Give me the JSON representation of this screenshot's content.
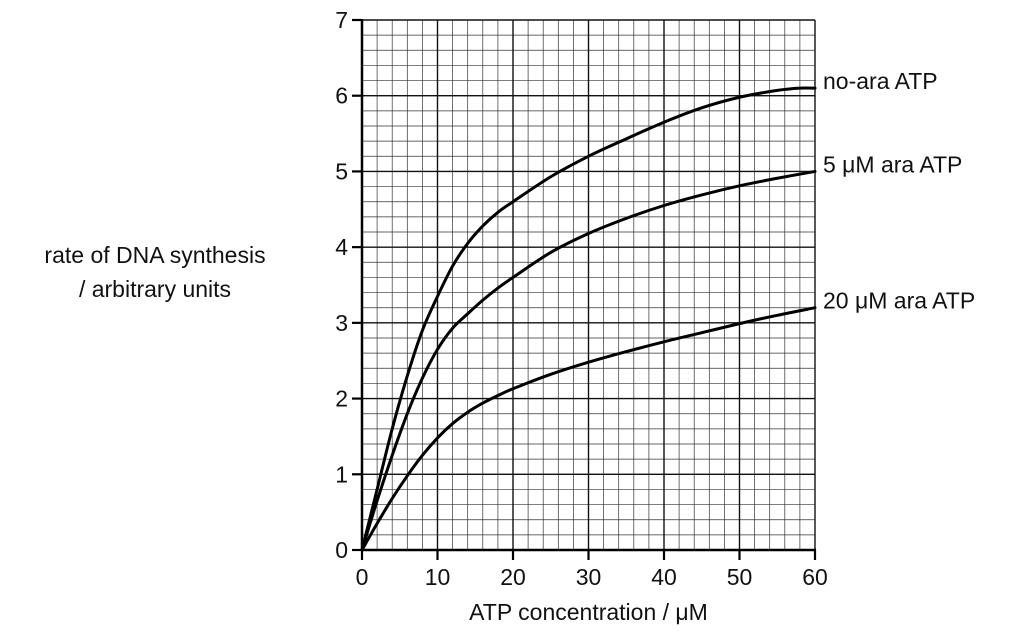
{
  "chart_data": {
    "type": "line",
    "title": "",
    "xlabel": "ATP concentration / μM",
    "ylabel_lines": [
      "rate of DNA synthesis",
      "/ arbitrary units"
    ],
    "xlim": [
      0,
      60
    ],
    "ylim": [
      0,
      7
    ],
    "x_ticks": [
      0,
      10,
      20,
      30,
      40,
      50,
      60
    ],
    "y_ticks": [
      0,
      1,
      2,
      3,
      4,
      5,
      6,
      7
    ],
    "grid": true,
    "minor_grid_step_x": 2,
    "minor_grid_step_y": 0.2,
    "legend": "labels at end of each line",
    "series": [
      {
        "name": "no-ara ATP",
        "x": [
          0,
          2,
          4,
          6,
          8,
          10,
          12,
          14,
          16,
          18,
          20,
          25,
          30,
          35,
          40,
          45,
          50,
          55,
          58,
          60
        ],
        "y": [
          0,
          0.8,
          1.6,
          2.3,
          2.9,
          3.35,
          3.75,
          4.05,
          4.28,
          4.46,
          4.6,
          4.93,
          5.2,
          5.43,
          5.65,
          5.84,
          5.98,
          6.07,
          6.1,
          6.1
        ]
      },
      {
        "name": "5 μM ara ATP",
        "x": [
          0,
          2,
          4,
          6,
          8,
          10,
          12,
          14,
          16,
          18,
          20,
          25,
          30,
          35,
          40,
          45,
          50,
          55,
          60
        ],
        "y": [
          0,
          0.65,
          1.25,
          1.8,
          2.27,
          2.65,
          2.93,
          3.12,
          3.3,
          3.46,
          3.6,
          3.93,
          4.18,
          4.38,
          4.55,
          4.69,
          4.81,
          4.91,
          5.0
        ]
      },
      {
        "name": "20 μM ara ATP",
        "x": [
          0,
          2,
          4,
          6,
          8,
          10,
          12,
          14,
          16,
          18,
          20,
          25,
          30,
          35,
          40,
          45,
          50,
          55,
          60
        ],
        "y": [
          0,
          0.35,
          0.68,
          0.98,
          1.25,
          1.48,
          1.67,
          1.82,
          1.94,
          2.04,
          2.13,
          2.32,
          2.48,
          2.62,
          2.75,
          2.87,
          2.99,
          3.1,
          3.2
        ]
      }
    ]
  }
}
